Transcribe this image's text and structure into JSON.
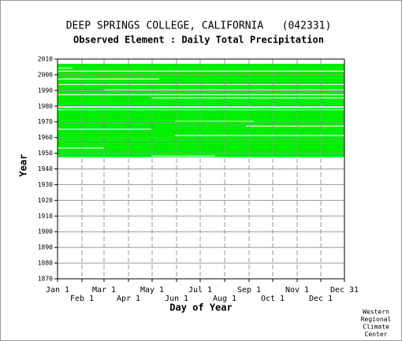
{
  "chart_data": {
    "type": "availability",
    "title": "DEEP SPRINGS COLLEGE, CALIFORNIA   (042331)",
    "subtitle": "Observed Element : Daily Total Precipitation",
    "xlabel": "Day of Year",
    "ylabel": "Year",
    "credit": [
      "Western",
      "Regional",
      "Climate",
      "Center"
    ],
    "xlim": [
      1,
      365
    ],
    "ylim": [
      1870,
      2010
    ],
    "xticks": [
      {
        "value": 1,
        "label": "Jan 1"
      },
      {
        "value": 32,
        "label": "Feb 1"
      },
      {
        "value": 60,
        "label": "Mar 1"
      },
      {
        "value": 91,
        "label": "Apr 1"
      },
      {
        "value": 121,
        "label": "May 1"
      },
      {
        "value": 152,
        "label": "Jun 1"
      },
      {
        "value": 182,
        "label": "Jul 1"
      },
      {
        "value": 213,
        "label": "Aug 1"
      },
      {
        "value": 244,
        "label": "Sep 1"
      },
      {
        "value": 274,
        "label": "Oct 1"
      },
      {
        "value": 305,
        "label": "Nov 1"
      },
      {
        "value": 335,
        "label": "Dec 1"
      },
      {
        "value": 365,
        "label": "Dec 31"
      }
    ],
    "yticks": [
      1870,
      1880,
      1890,
      1900,
      1910,
      1920,
      1930,
      1940,
      1950,
      1960,
      1970,
      1980,
      1990,
      2000,
      2010
    ],
    "grid": true,
    "color": "#00ee00",
    "gap_color": "#ffffff",
    "observed": [
      {
        "x": [
          1,
          365
        ],
        "y": [
          1947.5,
          2007
        ]
      }
    ],
    "missing": [
      {
        "x": [
          1,
          20
        ],
        "y": [
          2004,
          2004.5
        ]
      },
      {
        "x": [
          1,
          365
        ],
        "y": [
          2002,
          2002.6
        ]
      },
      {
        "x": [
          1,
          130
        ],
        "y": [
          1997,
          1997.6
        ]
      },
      {
        "x": [
          1,
          365
        ],
        "y": [
          1993.5,
          1994
        ]
      },
      {
        "x": [
          60,
          365
        ],
        "y": [
          1990,
          1990.6
        ]
      },
      {
        "x": [
          1,
          365
        ],
        "y": [
          1987,
          1987.6
        ]
      },
      {
        "x": [
          120,
          365
        ],
        "y": [
          1985,
          1985.6
        ]
      },
      {
        "x": [
          1,
          365
        ],
        "y": [
          1979,
          1979.8
        ]
      },
      {
        "x": [
          1,
          365
        ],
        "y": [
          1977.5,
          1978
        ]
      },
      {
        "x": [
          150,
          250
        ],
        "y": [
          1970,
          1970.6
        ]
      },
      {
        "x": [
          240,
          365
        ],
        "y": [
          1967,
          1967.6
        ]
      },
      {
        "x": [
          1,
          120
        ],
        "y": [
          1965,
          1965.6
        ]
      },
      {
        "x": [
          150,
          365
        ],
        "y": [
          1961,
          1961.6
        ]
      },
      {
        "x": [
          1,
          60
        ],
        "y": [
          1953,
          1953.6
        ]
      },
      {
        "x": [
          120,
          200
        ],
        "y": [
          1948,
          1948.5
        ]
      }
    ]
  }
}
